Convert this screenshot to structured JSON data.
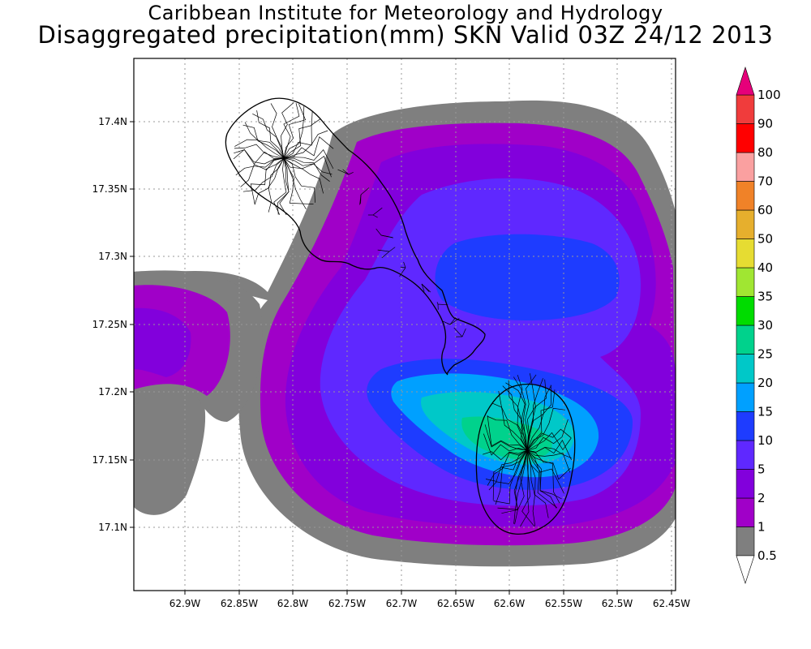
{
  "header": {
    "line1": "Caribbean Institute for Meteorology and Hydrology",
    "line2": "Disaggregated precipitation(mm) SKN Valid 03Z 24/12 2013"
  },
  "map": {
    "lon_ticks": [
      "62.9W",
      "62.85W",
      "62.8W",
      "62.75W",
      "62.7W",
      "62.65W",
      "62.6W",
      "62.55W",
      "62.5W",
      "62.45W"
    ],
    "lat_ticks": [
      "17.4N",
      "17.35N",
      "17.3N",
      "17.25N",
      "17.2N",
      "17.15N",
      "17.1N"
    ],
    "grid": true,
    "islands": [
      "St Kitts",
      "Nevis"
    ]
  },
  "colorbar": {
    "levels": [
      {
        "label": "0.5",
        "color": "#7f7f7f"
      },
      {
        "label": "1",
        "color": "#a000c8"
      },
      {
        "label": "2",
        "color": "#8200dc"
      },
      {
        "label": "5",
        "color": "#5f28ff"
      },
      {
        "label": "10",
        "color": "#1e3cff"
      },
      {
        "label": "15",
        "color": "#00a0ff"
      },
      {
        "label": "20",
        "color": "#00c8c8"
      },
      {
        "label": "25",
        "color": "#00d28c"
      },
      {
        "label": "30",
        "color": "#00dc00"
      },
      {
        "label": "35",
        "color": "#a0e632"
      },
      {
        "label": "40",
        "color": "#e6dc32"
      },
      {
        "label": "50",
        "color": "#e6af2d"
      },
      {
        "label": "60",
        "color": "#f08228"
      },
      {
        "label": "70",
        "color": "#faa0a0"
      },
      {
        "label": "80",
        "color": "#ff0000"
      },
      {
        "label": "90",
        "color": "#f03c3c"
      },
      {
        "label": "100",
        "color": "#e6007a"
      }
    ],
    "over_color": "#e6007a",
    "under_color": "#ffffff"
  }
}
